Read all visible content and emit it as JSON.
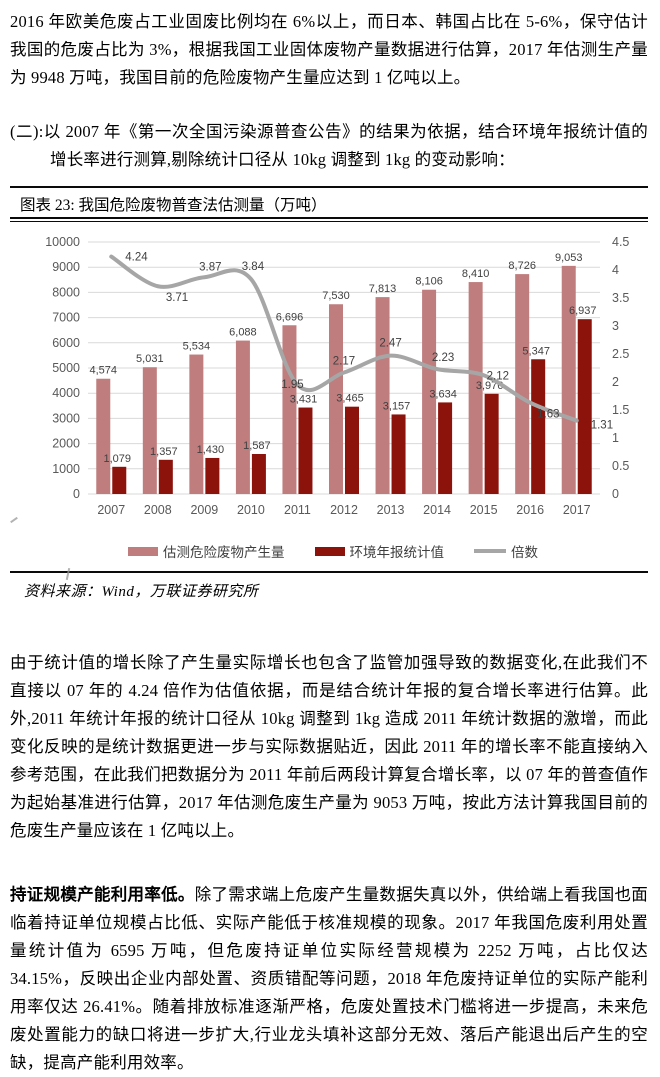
{
  "paragraphs": {
    "p1": "2016 年欧美危废占工业固废比例均在 6%以上，而日本、韩国占比在 5-6%，保守估计我国的危废占比为 3%，根据我国工业固体废物产量数据进行估算，2017 年估测生产量为 9948 万吨，我国目前的危险废物产生量应达到 1 亿吨以上。",
    "p2": "(二):以 2007 年《第一次全国污染源普查公告》的结果为依据，结合环境年报统计值的增长率进行测算,剔除统计口径从 10kg 调整到 1kg 的变动影响：",
    "p3": "由于统计值的增长除了产生量实际增长也包含了监管加强导致的数据变化,在此我们不直接以 07 年的 4.24 倍作为估值依据，而是结合统计年报的复合增长率进行估算。此外,2011 年统计年报的统计口径从 10kg 调整到 1kg 造成 2011 年统计数据的激增，而此变化反映的是统计数据更进一步与实际数据贴近，因此 2011 年的增长率不能直接纳入参考范围，在此我们把数据分为 2011 年前后两段计算复合增长率，以 07 年的普查值作为起始基准进行估算，2017 年估测危废生产量为 9053 万吨，按此方法计算我国目前的危废生产量应该在 1 亿吨以上。",
    "p4_bold": "持证规模产能利用率低。",
    "p4": "除了需求端上危废产生量数据失真以外，供给端上看我国也面临着持证单位规模占比低、实际产能低于核准规模的现象。2017 年我国危废利用处置量统计值为 6595 万吨，但危废持证单位实际经营规模为 2252 万吨，占比仅达 34.15%，反映出企业内部处置、资质错配等问题，2018 年危废持证单位的实际产能利用率仅达 26.41%。随着排放标准逐渐严格，危废处置技术门槛将进一步提高，未来危废处置能力的缺口将进一步扩大,行业龙头填补这部分无效、落后产能退出后产生的空缺，提高产能利用效率。"
  },
  "figure": {
    "title": "图表 23: 我国危险废物普查法估测量（万吨）",
    "source": "资料来源：Wind，万联证券研究所"
  },
  "chart_data": {
    "type": "bar",
    "title": "我国危险废物普查法估测量（万吨）",
    "categories": [
      "2007",
      "2008",
      "2009",
      "2010",
      "2011",
      "2012",
      "2013",
      "2014",
      "2015",
      "2016",
      "2017"
    ],
    "series": [
      {
        "name": "估测危险废物产生量",
        "kind": "bar",
        "axis": "left",
        "color": "#bf7d7e",
        "values": [
          4574,
          5031,
          5534,
          6088,
          6696,
          7530,
          7813,
          8106,
          8410,
          8726,
          9053
        ],
        "labels": [
          "4,574",
          "5,031",
          "5,534",
          "6,088",
          "6,696",
          "7,530",
          "7,813",
          "8,106",
          "8,410",
          "8,726",
          "9,053"
        ]
      },
      {
        "name": "环境年报统计值",
        "kind": "bar",
        "axis": "left",
        "color": "#8c120c",
        "values": [
          1079,
          1357,
          1430,
          1587,
          3431,
          3465,
          3157,
          3634,
          3976,
          5347,
          6937
        ],
        "labels": [
          "1,079",
          "1,357",
          "1,430",
          "1,587",
          "3,431",
          "3,465",
          "3,157",
          "3,634",
          "3,976",
          "5,347",
          "6,937"
        ]
      },
      {
        "name": "倍数",
        "kind": "line",
        "axis": "right",
        "color": "#a6a6a6",
        "values": [
          4.24,
          3.71,
          3.87,
          3.84,
          1.95,
          2.17,
          2.47,
          2.23,
          2.12,
          1.63,
          1.31
        ],
        "labels": [
          "4.24",
          "3.71",
          "3.87",
          "3.84",
          "1.95",
          "2.17",
          "2.47",
          "2.23",
          "2.12",
          "1.63",
          "1.31"
        ]
      }
    ],
    "left_axis": {
      "min": 0,
      "max": 10000,
      "step": 1000,
      "ticks": [
        "0",
        "1000",
        "2000",
        "3000",
        "4000",
        "5000",
        "6000",
        "7000",
        "8000",
        "9000",
        "10000"
      ]
    },
    "right_axis": {
      "min": 0,
      "max": 4.5,
      "step": 0.5,
      "ticks": [
        "0",
        "0.5",
        "1",
        "1.5",
        "2",
        "2.5",
        "3",
        "3.5",
        "4",
        "4.5"
      ]
    },
    "grid": true,
    "legend_position": "bottom",
    "colors": {
      "grid": "#d9d9d9",
      "axis_text": "#595959",
      "data_label": "#404040"
    }
  }
}
